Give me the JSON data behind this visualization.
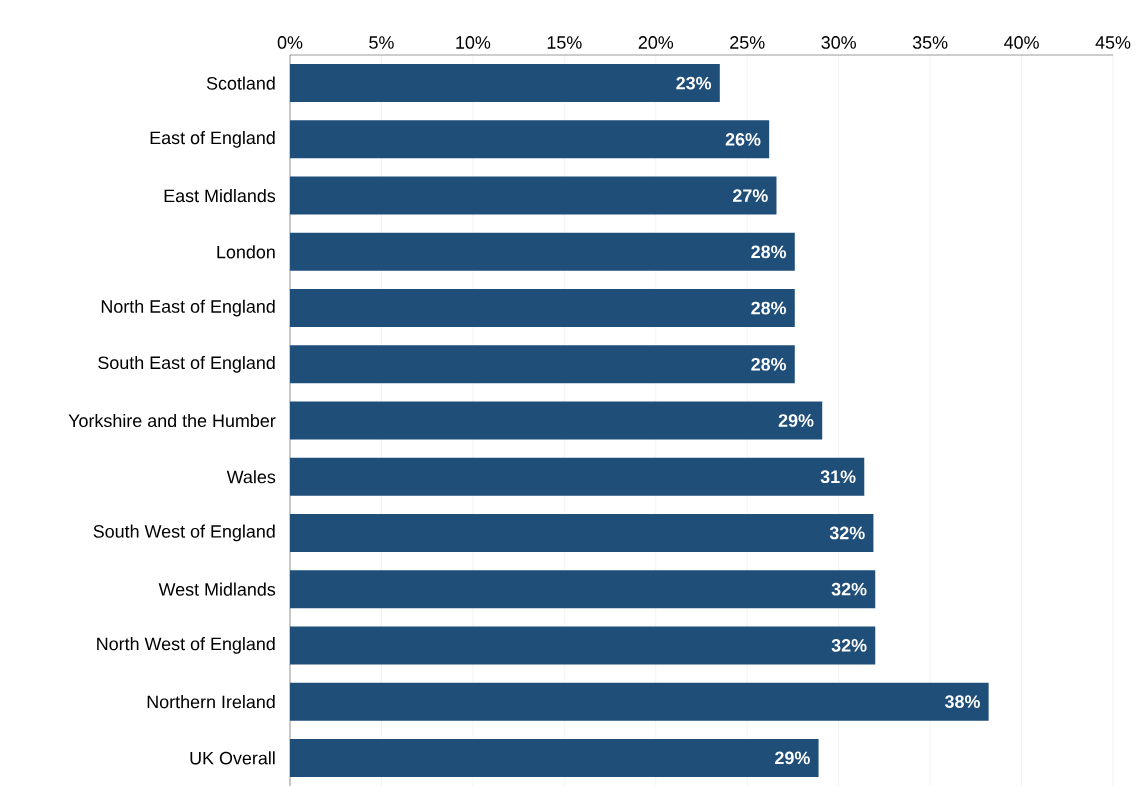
{
  "chart_data": {
    "type": "bar",
    "orientation": "horizontal",
    "categories": [
      "Scotland",
      "East of England",
      "East Midlands",
      "London",
      "North East of England",
      "South East of England",
      "Yorkshire and the Humber",
      "Wales",
      "South West of England",
      "West Midlands",
      "North West of England",
      "Northern Ireland",
      "UK Overall"
    ],
    "values": [
      23.5,
      26.2,
      26.6,
      27.6,
      27.6,
      27.6,
      29.1,
      31.4,
      31.9,
      32.0,
      32.0,
      38.2,
      28.9
    ],
    "value_labels": [
      "23%",
      "26%",
      "27%",
      "28%",
      "28%",
      "28%",
      "29%",
      "31%",
      "32%",
      "32%",
      "32%",
      "38%",
      "29%"
    ],
    "color": "#1f4e79",
    "xlim": [
      0,
      45
    ],
    "xticks": [
      {
        "value": 0,
        "label": "0%"
      },
      {
        "value": 5,
        "label": "5%"
      },
      {
        "value": 10,
        "label": "10%"
      },
      {
        "value": 15,
        "label": "15%"
      },
      {
        "value": 20,
        "label": "20%"
      },
      {
        "value": 25,
        "label": "25%"
      },
      {
        "value": 30,
        "label": "30%"
      },
      {
        "value": 35,
        "label": "35%"
      },
      {
        "value": 40,
        "label": "40%"
      },
      {
        "value": 45,
        "label": "45%"
      }
    ],
    "grid": "x"
  }
}
